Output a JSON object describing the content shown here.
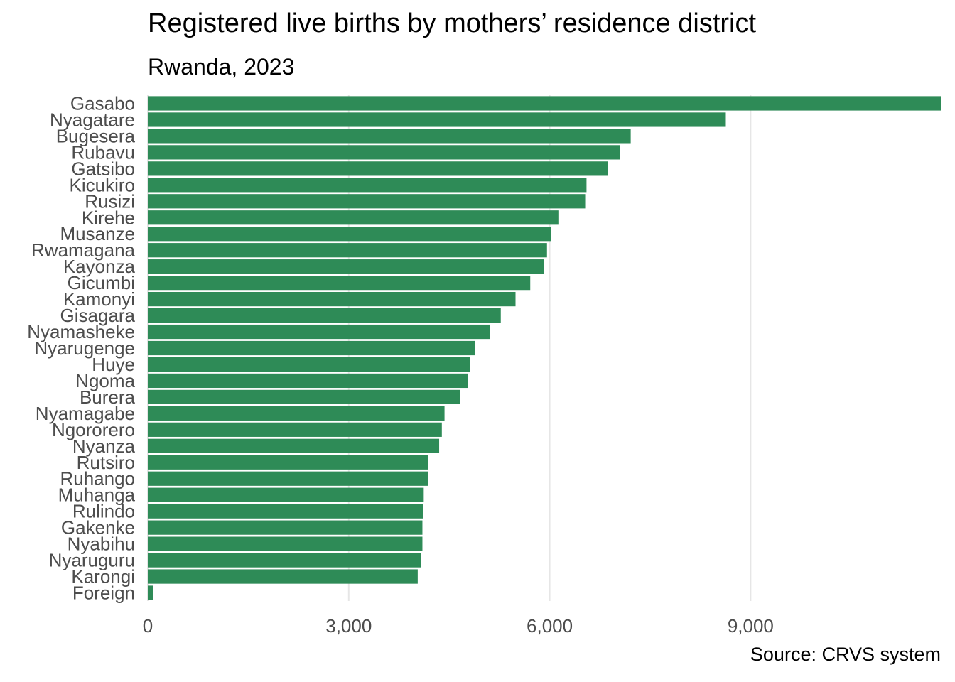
{
  "chart_data": {
    "type": "bar",
    "orientation": "horizontal",
    "title": "Registered live births by mothers’ residence district",
    "subtitle": "Rwanda, 2023",
    "caption": "Source: CRVS system",
    "xlabel": "",
    "ylabel": "",
    "xlim": [
      0,
      11850
    ],
    "x_ticks": [
      0,
      3000,
      6000,
      9000
    ],
    "x_tick_labels": [
      "0",
      "3,000",
      "6,000",
      "9,000"
    ],
    "grid": "vertical major",
    "bar_color": "#2e8b57",
    "categories": [
      "Gasabo",
      "Nyagatare",
      "Bugesera",
      "Rubavu",
      "Gatsibo",
      "Kicukiro",
      "Rusizi",
      "Kirehe",
      "Musanze",
      "Rwamagana",
      "Kayonza",
      "Gicumbi",
      "Kamonyi",
      "Gisagara",
      "Nyamasheke",
      "Nyarugenge",
      "Huye",
      "Ngoma",
      "Burera",
      "Nyamagabe",
      "Ngororero",
      "Nyanza",
      "Rutsiro",
      "Ruhango",
      "Muhanga",
      "Rulindo",
      "Gakenke",
      "Nyabihu",
      "Nyaruguru",
      "Karongi",
      "Foreign"
    ],
    "values": [
      11850,
      8630,
      7210,
      7050,
      6870,
      6550,
      6530,
      6130,
      6020,
      5960,
      5910,
      5710,
      5490,
      5270,
      5110,
      4890,
      4810,
      4780,
      4660,
      4430,
      4390,
      4350,
      4180,
      4180,
      4120,
      4110,
      4100,
      4100,
      4080,
      4030,
      80
    ]
  }
}
